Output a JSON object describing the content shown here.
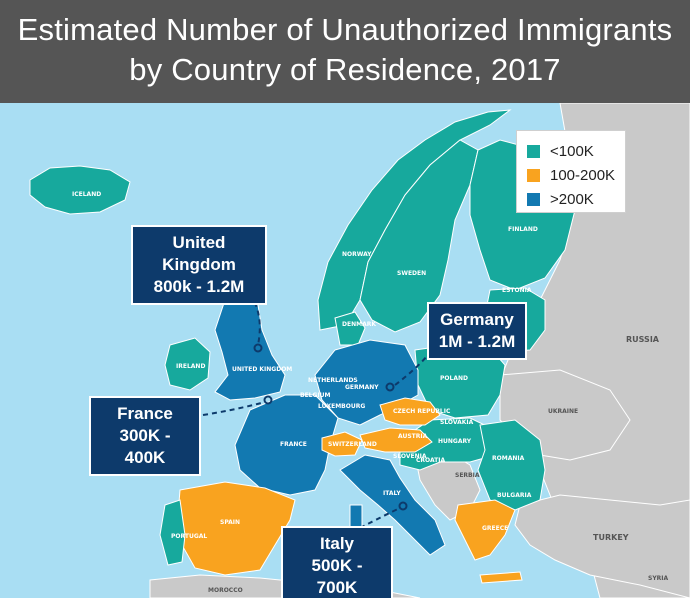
{
  "title": {
    "line1": "Estimated Number of Unauthorized Immigrants",
    "line2": "by Country of Residence, 2017"
  },
  "legend": [
    {
      "label": "<100K",
      "color": "#17a99d"
    },
    {
      "label": "100-200K",
      "color": "#f9a31f"
    },
    {
      "label": ">200K",
      "color": "#1279b1"
    }
  ],
  "colors": {
    "sea": "#a9def3",
    "non_eu": "#c9c9c9",
    "callout_bg": "#0d3a6b"
  },
  "callouts": {
    "uk": {
      "name": "United Kingdom",
      "range": "800k - 1.2M"
    },
    "germany": {
      "name": "Germany",
      "range": "1M - 1.2M"
    },
    "france": {
      "name": "France",
      "range": "300K - 400K"
    },
    "italy": {
      "name": "Italy",
      "range": "500K - 700K"
    }
  },
  "labels": {
    "iceland": "ICELAND",
    "norway": "NORWAY",
    "sweden": "SWEDEN",
    "finland": "FINLAND",
    "estonia": "ESTONIA",
    "russia": "RUSSIA",
    "denmark": "DENMARK",
    "ireland": "IRELAND",
    "uk": "UNITED KINGDOM",
    "netherlands": "NETHERLANDS",
    "belgium": "BELGIUM",
    "luxembourg": "LUXEMBOURG",
    "germany": "GERMANY",
    "poland": "POLAND",
    "czech": "CZECH REPUBLIC",
    "slovakia": "SLOVAKIA",
    "austria": "AUSTRIA",
    "hungary": "HUNGARY",
    "ukraine": "UKRAINE",
    "switzerland": "SWITZERLAND",
    "slovenia": "SLOVENIA",
    "croatia": "CROATIA",
    "serbia": "SERBIA",
    "romania": "ROMANIA",
    "bulgaria": "BULGARIA",
    "france": "FRANCE",
    "italy": "ITALY",
    "spain": "SPAIN",
    "portugal": "PORTUGAL",
    "greece": "GREECE",
    "turkey": "TURKEY",
    "morocco": "MOROCCO",
    "syria": "SYRIA"
  }
}
